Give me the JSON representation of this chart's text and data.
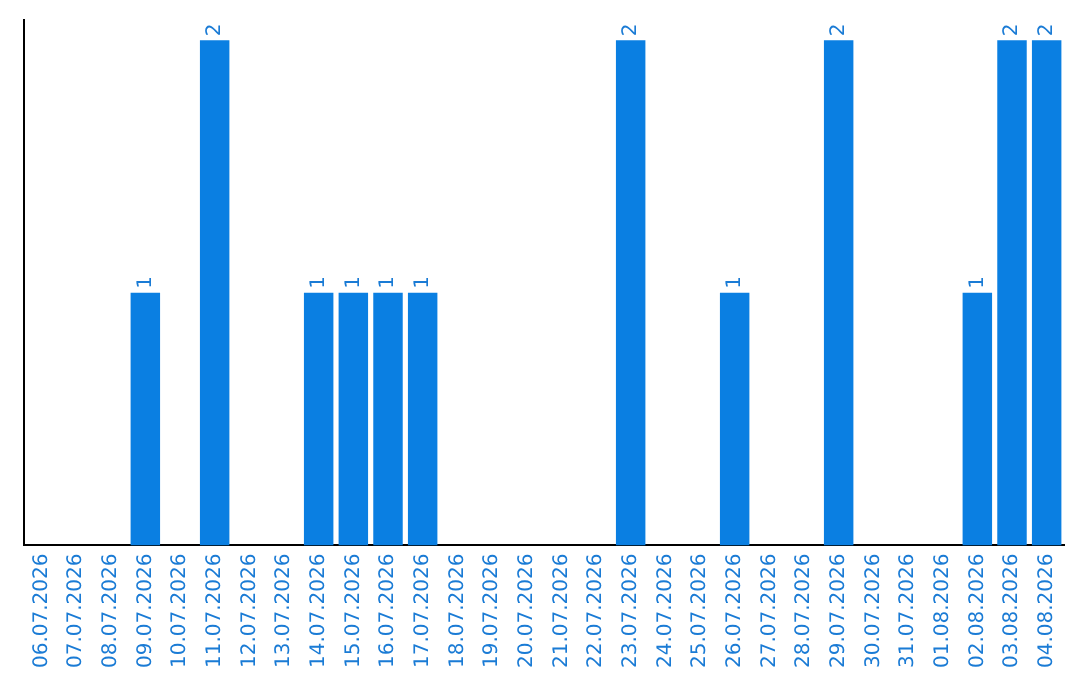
{
  "chart_data": {
    "type": "bar",
    "categories": [
      "06.07.2026",
      "07.07.2026",
      "08.07.2026",
      "09.07.2026",
      "10.07.2026",
      "11.07.2026",
      "12.07.2026",
      "13.07.2026",
      "14.07.2026",
      "15.07.2026",
      "16.07.2026",
      "17.07.2026",
      "18.07.2026",
      "19.07.2026",
      "20.07.2026",
      "21.07.2026",
      "22.07.2026",
      "23.07.2026",
      "24.07.2026",
      "25.07.2026",
      "26.07.2026",
      "27.07.2026",
      "28.07.2026",
      "29.07.2026",
      "30.07.2026",
      "31.07.2026",
      "01.08.2026",
      "02.08.2026",
      "03.08.2026",
      "04.08.2026"
    ],
    "values": [
      0,
      0,
      0,
      1,
      0,
      2,
      0,
      0,
      1,
      1,
      1,
      1,
      0,
      0,
      0,
      0,
      0,
      2,
      0,
      0,
      1,
      0,
      0,
      2,
      0,
      0,
      0,
      1,
      2,
      2
    ],
    "value_labels": [
      null,
      null,
      null,
      "1",
      null,
      "2",
      null,
      null,
      "1",
      "1",
      "1",
      "1",
      null,
      null,
      null,
      null,
      null,
      "2",
      null,
      null,
      "1",
      null,
      null,
      "2",
      null,
      null,
      null,
      "1",
      "2",
      "2"
    ],
    "color": "#0a7fe2",
    "tick_labels": "x",
    "grid": false,
    "legend": false
  }
}
